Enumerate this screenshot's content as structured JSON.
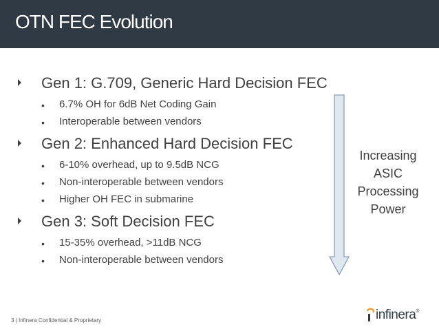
{
  "slide": {
    "title": "OTN FEC Evolution",
    "bullets": [
      {
        "text": "Gen 1: G.709, Generic Hard Decision FEC",
        "sub": [
          "6.7% OH for 6dB Net Coding Gain",
          "Interoperable between vendors"
        ]
      },
      {
        "text": "Gen 2: Enhanced Hard Decision FEC",
        "sub": [
          "6-10% overhead, up to 9.5dB NCG",
          "Non-interoperable between vendors",
          "Higher OH FEC in submarine"
        ]
      },
      {
        "text": "Gen 3: Soft Decision FEC",
        "sub": [
          "15-35% overhead, >11dB NCG",
          "Non-interoperable between vendors"
        ]
      }
    ],
    "arrow_label": [
      "Increasing",
      "ASIC",
      "Processing",
      "Power"
    ],
    "footer": "3 | Infinera Confidential & Proprietary",
    "logo": "infinera",
    "logo_mark": "®"
  },
  "colors": {
    "header_bg": "#2f3a45",
    "text": "#404040",
    "arrow_fill": "#dfe7f1",
    "arrow_stroke": "#8a9db4",
    "logo_orange": "#f7941d"
  }
}
